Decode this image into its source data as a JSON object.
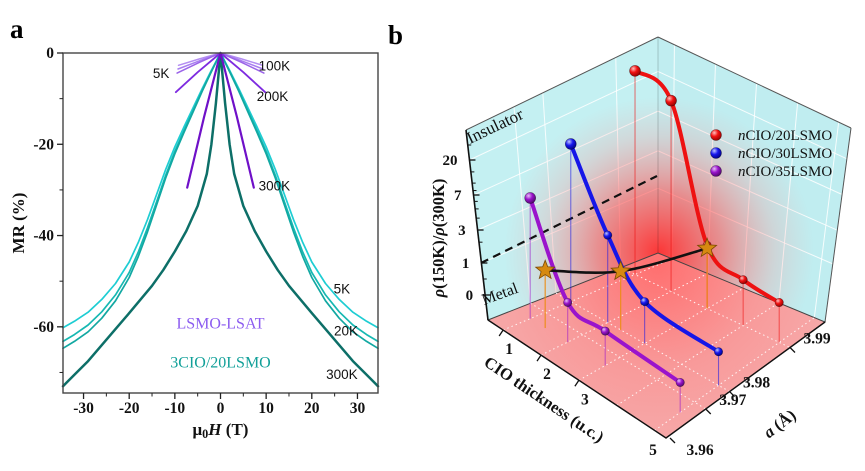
{
  "figure": {
    "panels": [
      {
        "letter": "a"
      },
      {
        "letter": "b"
      }
    ]
  },
  "chart_data": [
    {
      "id": "panel-a",
      "type": "line",
      "xlabel_parts": [
        {
          "t": "μ"
        },
        {
          "t": "0",
          "sub": true
        },
        {
          "t": "H",
          "i": true
        },
        {
          "t": " (T)"
        }
      ],
      "ylabel": "MR (%)",
      "xlim": [
        -34.5,
        34.5
      ],
      "ylim": [
        -74.5,
        0
      ],
      "x_ticks": [
        -30,
        -20,
        -10,
        0,
        10,
        20,
        30
      ],
      "x_minor_ticks": [
        -25,
        -15,
        -5,
        5,
        15,
        25
      ],
      "y_ticks": [
        0,
        -20,
        -40,
        -60
      ],
      "y_minor_ticks": [
        -10,
        -30,
        -50,
        -70
      ],
      "groups": [
        {
          "name": "LSMO-LSAT",
          "text_color": "#8c5cf0",
          "series": [
            {
              "name": "5K",
              "color": "#b48ef2",
              "width": 1.5,
              "points": [
                [
                  -9.2,
                  -2.7
                ],
                [
                  -4.6,
                  -1.3
                ],
                [
                  0,
                  0
                ],
                [
                  4.6,
                  -1.3
                ],
                [
                  9.2,
                  -2.7
                ]
              ]
            },
            {
              "name": "5K-b",
              "color": "#a87ef0",
              "width": 1.5,
              "points": [
                [
                  -9.3,
                  -3.5
                ],
                [
                  -4.6,
                  -1.7
                ],
                [
                  0,
                  0
                ],
                [
                  4.6,
                  -1.7
                ],
                [
                  9.3,
                  -3.5
                ]
              ]
            },
            {
              "name": "100K",
              "color": "#9b63e8",
              "width": 1.5,
              "points": [
                [
                  -9.5,
                  -4.4
                ],
                [
                  -4.7,
                  -2.1
                ],
                [
                  0,
                  0
                ],
                [
                  4.7,
                  -2.1
                ],
                [
                  9.5,
                  -4.4
                ]
              ]
            },
            {
              "name": "200K",
              "color": "#7e2be0",
              "width": 1.8,
              "points": [
                [
                  -9.8,
                  -8.6
                ],
                [
                  -5,
                  -4.2
                ],
                [
                  0,
                  0
                ],
                [
                  5,
                  -4.2
                ],
                [
                  9.8,
                  -8.6
                ]
              ]
            },
            {
              "name": "300K",
              "color": "#6f10c8",
              "width": 2.2,
              "points": [
                [
                  -7.3,
                  -29.5
                ],
                [
                  -3.6,
                  -14
                ],
                [
                  0,
                  0
                ],
                [
                  3.6,
                  -14
                ],
                [
                  7.3,
                  -29.5
                ]
              ]
            }
          ]
        },
        {
          "name": "3CIO/20LSMO",
          "text_color": "#12a099",
          "series": [
            {
              "name": "5K",
              "color": "#1ecdd3",
              "width": 1.7,
              "points": [
                [
                  -34.5,
                  -60.2
                ],
                [
                  -32,
                  -58.8
                ],
                [
                  -29,
                  -56.8
                ],
                [
                  -26,
                  -54
                ],
                [
                  -23,
                  -50.5
                ],
                [
                  -20,
                  -45.8
                ],
                [
                  -18,
                  -41.5
                ],
                [
                  -16,
                  -36.5
                ],
                [
                  -14,
                  -31
                ],
                [
                  -12,
                  -25.5
                ],
                [
                  -10,
                  -20.6
                ],
                [
                  -8,
                  -16.2
                ],
                [
                  -6,
                  -12
                ],
                [
                  -4,
                  -7.8
                ],
                [
                  -2,
                  -3.8
                ],
                [
                  0,
                  0
                ],
                [
                  2,
                  -3.8
                ],
                [
                  4,
                  -7.8
                ],
                [
                  6,
                  -12
                ],
                [
                  8,
                  -16.2
                ],
                [
                  10,
                  -20.6
                ],
                [
                  12,
                  -25.5
                ],
                [
                  14,
                  -31
                ],
                [
                  16,
                  -36.5
                ],
                [
                  18,
                  -41.5
                ],
                [
                  20,
                  -45.8
                ],
                [
                  23,
                  -50.5
                ],
                [
                  26,
                  -54
                ],
                [
                  29,
                  -56.8
                ],
                [
                  32,
                  -58.8
                ],
                [
                  34.5,
                  -60.2
                ]
              ]
            },
            {
              "name": "20K",
              "color": "#16b8b2",
              "width": 1.7,
              "points": [
                [
                  -34.5,
                  -63.2
                ],
                [
                  -32,
                  -61.7
                ],
                [
                  -29,
                  -59.6
                ],
                [
                  -26,
                  -56.7
                ],
                [
                  -23,
                  -53
                ],
                [
                  -20,
                  -48.1
                ],
                [
                  -18,
                  -43.6
                ],
                [
                  -16,
                  -38.3
                ],
                [
                  -14,
                  -32.6
                ],
                [
                  -12,
                  -26.8
                ],
                [
                  -10,
                  -21.6
                ],
                [
                  -8,
                  -17
                ],
                [
                  -6,
                  -12.6
                ],
                [
                  -4,
                  -8.2
                ],
                [
                  -2,
                  -4
                ],
                [
                  0,
                  0
                ],
                [
                  2,
                  -4
                ],
                [
                  4,
                  -8.2
                ],
                [
                  6,
                  -12.6
                ],
                [
                  8,
                  -17
                ],
                [
                  10,
                  -21.6
                ],
                [
                  12,
                  -26.8
                ],
                [
                  14,
                  -32.6
                ],
                [
                  16,
                  -38.3
                ],
                [
                  18,
                  -43.6
                ],
                [
                  20,
                  -48.1
                ],
                [
                  23,
                  -53
                ],
                [
                  26,
                  -56.7
                ],
                [
                  29,
                  -59.6
                ],
                [
                  32,
                  -61.7
                ],
                [
                  34.5,
                  -63.2
                ]
              ]
            },
            {
              "name": "20K-b",
              "color": "#12a8a2",
              "width": 1.7,
              "points": [
                [
                  -34.5,
                  -64.7
                ],
                [
                  -32,
                  -63.2
                ],
                [
                  -29,
                  -61.1
                ],
                [
                  -26,
                  -58.1
                ],
                [
                  -23,
                  -54.3
                ],
                [
                  -20,
                  -49.2
                ],
                [
                  -18,
                  -44.6
                ],
                [
                  -16,
                  -39.2
                ],
                [
                  -14,
                  -33.3
                ],
                [
                  -12,
                  -27.4
                ],
                [
                  -10,
                  -22.1
                ],
                [
                  -8,
                  -17.4
                ],
                [
                  -6,
                  -12.9
                ],
                [
                  -4,
                  -8.4
                ],
                [
                  -2,
                  -4.1
                ],
                [
                  0,
                  0
                ],
                [
                  2,
                  -4.1
                ],
                [
                  4,
                  -8.4
                ],
                [
                  6,
                  -12.9
                ],
                [
                  8,
                  -17.4
                ],
                [
                  10,
                  -22.1
                ],
                [
                  12,
                  -27.4
                ],
                [
                  14,
                  -33.3
                ],
                [
                  16,
                  -39.2
                ],
                [
                  18,
                  -44.6
                ],
                [
                  20,
                  -49.2
                ],
                [
                  23,
                  -54.3
                ],
                [
                  26,
                  -58.1
                ],
                [
                  29,
                  -61.1
                ],
                [
                  32,
                  -63.2
                ],
                [
                  34.5,
                  -64.7
                ]
              ]
            },
            {
              "name": "300K",
              "color": "#0d6f68",
              "width": 2.5,
              "points": [
                [
                  -34.5,
                  -73
                ],
                [
                  -32,
                  -70.5
                ],
                [
                  -29,
                  -67.5
                ],
                [
                  -26,
                  -64
                ],
                [
                  -23,
                  -60.5
                ],
                [
                  -20,
                  -57
                ],
                [
                  -17.5,
                  -54
                ],
                [
                  -15,
                  -51
                ],
                [
                  -12.5,
                  -47.5
                ],
                [
                  -10,
                  -43.5
                ],
                [
                  -7.5,
                  -39
                ],
                [
                  -5,
                  -33.5
                ],
                [
                  -3,
                  -26.5
                ],
                [
                  -2,
                  -20
                ],
                [
                  -1,
                  -11
                ],
                [
                  0,
                  0
                ],
                [
                  1,
                  -11
                ],
                [
                  2,
                  -20
                ],
                [
                  3,
                  -26.5
                ],
                [
                  5,
                  -33.5
                ],
                [
                  7.5,
                  -39
                ],
                [
                  10,
                  -43.5
                ],
                [
                  12.5,
                  -47.5
                ],
                [
                  15,
                  -51
                ],
                [
                  17.5,
                  -54
                ],
                [
                  20,
                  -57
                ],
                [
                  23,
                  -60.5
                ],
                [
                  26,
                  -64
                ],
                [
                  29,
                  -67.5
                ],
                [
                  32,
                  -70.5
                ],
                [
                  34.5,
                  -73
                ]
              ]
            }
          ]
        }
      ],
      "annotations": [
        {
          "text": "5K",
          "x": -13,
          "y": -4.6,
          "font": "sans",
          "size": 13.5,
          "color": "#111"
        },
        {
          "text": "100K",
          "x": 11.8,
          "y": -3,
          "font": "sans",
          "size": 13.5,
          "color": "#111"
        },
        {
          "text": "200K",
          "x": 11.4,
          "y": -9.6,
          "font": "sans",
          "size": 13.5,
          "color": "#111"
        },
        {
          "text": "300K",
          "x": 11.8,
          "y": -29.2,
          "font": "sans",
          "size": 13.5,
          "color": "#111"
        },
        {
          "text": "5K",
          "x": 26.6,
          "y": -51.8,
          "font": "sans",
          "size": 13.5,
          "color": "#111"
        },
        {
          "text": "20K",
          "x": 27.5,
          "y": -61,
          "font": "sans",
          "size": 13.5,
          "color": "#111"
        },
        {
          "text": "300K",
          "x": 26.6,
          "y": -70.6,
          "font": "sans",
          "size": 13.5,
          "color": "#111"
        },
        {
          "text": "LSMO-LSAT",
          "x": 0,
          "y": -59.5,
          "font": "serif",
          "size": 16,
          "color": "#8c5cf0"
        },
        {
          "text": "3CIO/20LSMO",
          "x": 0,
          "y": -68,
          "font": "serif",
          "size": 16,
          "color": "#12a099"
        }
      ]
    },
    {
      "id": "panel-b",
      "type": "line3d",
      "axes": {
        "z_label_parts": [
          {
            "t": "ρ",
            "i": true
          },
          {
            "t": "(150K)/"
          },
          {
            "t": "ρ",
            "i": true
          },
          {
            "t": "(300K)"
          }
        ],
        "x_label": "CIO thickness (u.c.)",
        "y_label_parts": [
          {
            "t": "a",
            "i": true
          },
          {
            "t": " (Å)"
          }
        ],
        "z_ticks": [
          0,
          1,
          3,
          7,
          20
        ],
        "z_minor_ticks": [
          0.5,
          2,
          4,
          5,
          6,
          8,
          10,
          14,
          30
        ],
        "x_ticks": [
          1,
          2,
          3
        ],
        "x_end_tick": 5,
        "y_ticks": [
          3.96,
          3.97,
          3.98,
          3.99
        ]
      },
      "regions": {
        "insulator": "Insulator",
        "metal": "Metal"
      },
      "legend": [
        {
          "label_parts": [
            {
              "t": "n",
              "i": true
            },
            {
              "t": "CIO/20LSMO"
            }
          ],
          "color": "#ee1111"
        },
        {
          "label_parts": [
            {
              "t": "n",
              "i": true
            },
            {
              "t": "CIO/30LSMO"
            }
          ],
          "color": "#1616e8"
        },
        {
          "label_parts": [
            {
              "t": "n",
              "i": true
            },
            {
              "t": "CIO/35LSMO"
            }
          ],
          "color": "#9a14cc"
        }
      ],
      "series": [
        {
          "name": "nCIO/20LSMO",
          "color": "#ee1111",
          "a": 3.99,
          "thickness": [
            1,
            2,
            3,
            4,
            5
          ],
          "rho": [
            40,
            32,
            1.1,
            0.6,
            0.45
          ]
        },
        {
          "name": "nCIO/30LSMO",
          "color": "#1616e8",
          "a": 3.98,
          "thickness": [
            1,
            2,
            3,
            5
          ],
          "rho": [
            15,
            2.5,
            0.5,
            0.28
          ]
        },
        {
          "name": "nCIO/35LSMO",
          "color": "#9a14cc",
          "a": 3.964,
          "thickness": [
            1,
            2,
            3,
            5
          ],
          "rho": [
            6,
            0.45,
            0.3,
            0.18
          ]
        }
      ],
      "mit_boundary": {
        "color": "#111111",
        "star_color": "#d68910",
        "points": [
          {
            "thickness": 1.4,
            "a": 3.964,
            "rho": 1
          },
          {
            "thickness": 2.35,
            "a": 3.98,
            "rho": 1
          },
          {
            "thickness": 3.0,
            "a": 3.99,
            "rho": 1
          }
        ]
      },
      "dashed_level": 1
    }
  ]
}
